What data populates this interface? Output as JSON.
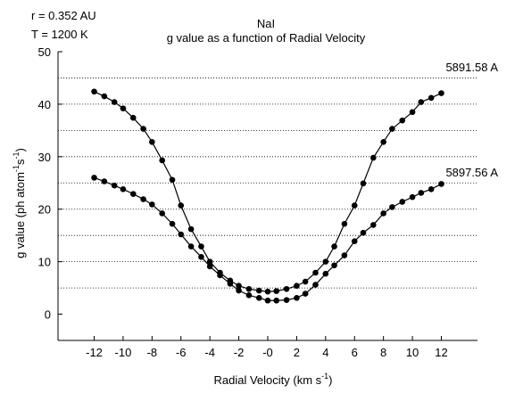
{
  "chart_data": {
    "type": "line",
    "title_line1": "NaI",
    "title_line2": "g value as a function of Radial Velocity",
    "annotations": {
      "r": "r = 0.352 AU",
      "T": "T = 1200 K"
    },
    "xlabel": {
      "text": "Radial Velocity (km s",
      "sup": "-1",
      "close": ")"
    },
    "ylabel": {
      "prefix": "g value (ph atom",
      "sup1": "-1",
      "middle": "s",
      "sup2": "-1",
      "close": ")"
    },
    "xlim": [
      -14.5,
      14.5
    ],
    "ylim": [
      -5,
      50
    ],
    "x_ticks": [
      -12,
      -10,
      -8,
      -6,
      -4,
      -2,
      0,
      2,
      4,
      6,
      8,
      10,
      12
    ],
    "x_tick_labels": [
      "-12",
      "-10",
      "-8",
      "-6",
      "-4",
      "-2",
      "-0",
      "2",
      "4",
      "6",
      "8",
      "10",
      "12"
    ],
    "y_ticks": [
      0,
      10,
      20,
      30,
      40,
      50
    ],
    "y_tick_labels": [
      "0",
      "10",
      "20",
      "30",
      "40",
      "50"
    ],
    "grid": {
      "y_dotted": [
        5,
        10,
        15,
        20,
        25,
        30,
        35,
        40,
        45
      ]
    },
    "series": [
      {
        "name": "5891.58 A",
        "color": "#000000",
        "x": [
          -12,
          -11.3,
          -10.6,
          -10,
          -9.3,
          -8.6,
          -8,
          -7.3,
          -6.6,
          -6,
          -5.3,
          -4.6,
          -4,
          -3.3,
          -2.6,
          -2,
          -1.3,
          -0.6,
          0,
          0.6,
          1.3,
          2,
          2.6,
          3.3,
          4,
          4.6,
          5.3,
          6,
          6.6,
          7.3,
          8,
          8.6,
          9.3,
          10,
          10.6,
          11.3,
          12
        ],
        "values": [
          42.4,
          41.5,
          40.4,
          39.2,
          37.4,
          35.3,
          32.8,
          29.3,
          25.6,
          20.7,
          16.2,
          12.9,
          10.0,
          7.9,
          6.4,
          5.4,
          4.8,
          4.5,
          4.3,
          4.4,
          4.8,
          5.4,
          6.2,
          7.9,
          10.0,
          12.9,
          17.2,
          20.7,
          24.9,
          29.8,
          32.8,
          35.3,
          36.9,
          38.5,
          40.4,
          41.2,
          42.1
        ]
      },
      {
        "name": "5897.56 A",
        "color": "#000000",
        "x": [
          -12,
          -11.3,
          -10.6,
          -10,
          -9.3,
          -8.6,
          -8,
          -7.3,
          -6.6,
          -6,
          -5.3,
          -4.6,
          -4,
          -3.3,
          -2.6,
          -2,
          -1.3,
          -0.6,
          0,
          0.6,
          1.3,
          2,
          2.6,
          3.3,
          4,
          4.6,
          5.3,
          6,
          6.6,
          7.3,
          8,
          8.6,
          9.3,
          10,
          10.6,
          11.3,
          12
        ],
        "values": [
          26.0,
          25.3,
          24.5,
          23.8,
          22.9,
          21.9,
          20.9,
          19.2,
          17.2,
          15.2,
          12.9,
          10.9,
          9.1,
          7.4,
          5.8,
          4.5,
          3.6,
          3.1,
          2.6,
          2.6,
          2.7,
          3.1,
          3.9,
          5.6,
          7.7,
          9.3,
          11.2,
          13.9,
          15.5,
          17.0,
          19.2,
          20.4,
          21.4,
          22.3,
          23.1,
          23.8,
          24.8
        ]
      }
    ]
  }
}
